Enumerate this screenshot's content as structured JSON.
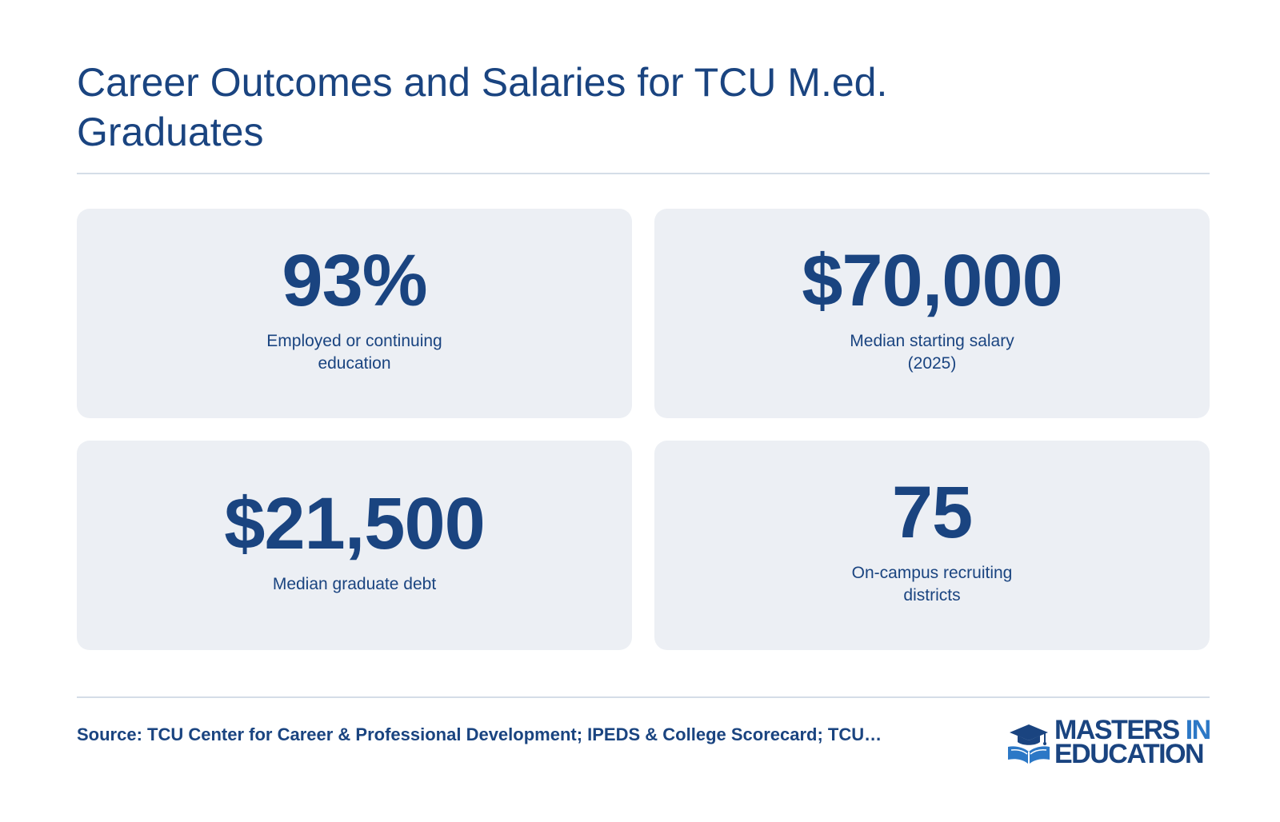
{
  "title": "Career Outcomes and Salaries for TCU M.ed. Graduates",
  "stats": [
    {
      "value": "93%",
      "label": "Employed or continuing education"
    },
    {
      "value": "$70,000",
      "label": "Median starting salary (2025)"
    },
    {
      "value": "$21,500",
      "label": "Median graduate debt"
    },
    {
      "value": "75",
      "label": "On-campus recruiting districts"
    }
  ],
  "source": "Source: TCU Center for Career & Professional Development; IPEDS & College Scorecard; TCU…",
  "logo": {
    "word1": "MASTERS",
    "word2": "IN",
    "word3": "EDUCATION",
    "icon": "graduation-cap-book-icon"
  },
  "colors": {
    "primary": "#1a4480",
    "accent": "#2c78c6",
    "card_background": "#eceff4",
    "divider": "#d4dde7"
  }
}
